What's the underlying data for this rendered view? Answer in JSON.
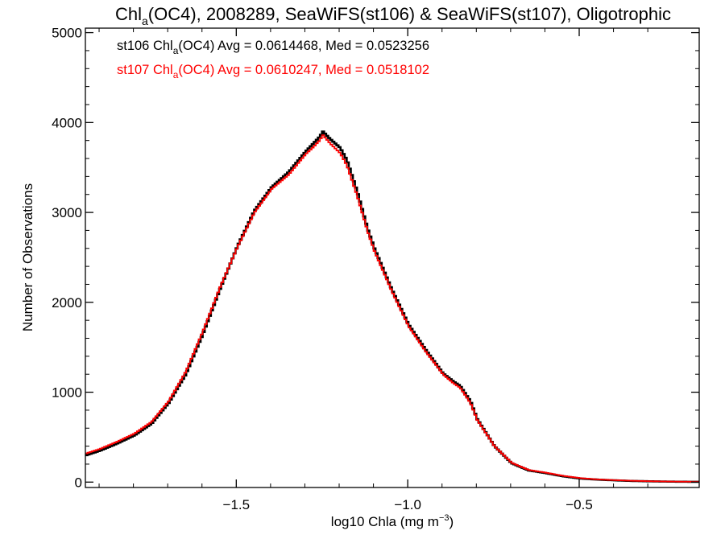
{
  "chart_data": {
    "type": "line",
    "step": true,
    "title": {
      "prefix": "Chl",
      "sub": "a",
      "suffix": "(OC4), 2008289, SeaWiFS(st106) & SeaWiFS(st107), Oligotrophic"
    },
    "xlabel": {
      "prefix": "log10 Chla (mg m",
      "sup": "−3",
      "suffix": ")"
    },
    "ylabel": "Number of Observations",
    "xlim": [
      -1.94,
      -0.15
    ],
    "ylim": [
      -60,
      5050
    ],
    "xticks": [
      {
        "value": -1.5,
        "label": "−1.5"
      },
      {
        "value": -1.0,
        "label": "−1.0"
      },
      {
        "value": -0.5,
        "label": "−0.5"
      }
    ],
    "yticks": [
      {
        "value": 0,
        "label": "0"
      },
      {
        "value": 1000,
        "label": "1000"
      },
      {
        "value": 2000,
        "label": "2000"
      },
      {
        "value": 3000,
        "label": "3000"
      },
      {
        "value": 4000,
        "label": "4000"
      },
      {
        "value": 5000,
        "label": "5000"
      }
    ],
    "grid": false,
    "legend": [
      {
        "series": "st106",
        "prefix": "st106 Chl",
        "sub": "a",
        "suffix": "(OC4) Avg = 0.0614468, Med = 0.0523256",
        "color": "#000000"
      },
      {
        "series": "st107",
        "prefix": "st107 Chl",
        "sub": "a",
        "suffix": "(OC4) Avg = 0.0610247, Med = 0.0518102",
        "color": "#ff0000"
      }
    ],
    "series": [
      {
        "name": "st106",
        "color": "#000000",
        "x": [
          -1.94,
          -1.9,
          -1.85,
          -1.8,
          -1.75,
          -1.7,
          -1.65,
          -1.6,
          -1.55,
          -1.5,
          -1.45,
          -1.4,
          -1.35,
          -1.3,
          -1.28,
          -1.26,
          -1.25,
          -1.23,
          -1.2,
          -1.18,
          -1.15,
          -1.12,
          -1.1,
          -1.05,
          -1.0,
          -0.95,
          -0.9,
          -0.87,
          -0.85,
          -0.82,
          -0.8,
          -0.75,
          -0.7,
          -0.65,
          -0.6,
          -0.55,
          -0.5,
          -0.45,
          -0.4,
          -0.35,
          -0.3,
          -0.25,
          -0.2,
          -0.15
        ],
        "y": [
          300,
          350,
          430,
          520,
          650,
          880,
          1200,
          1650,
          2150,
          2620,
          3020,
          3280,
          3450,
          3680,
          3760,
          3840,
          3900,
          3820,
          3720,
          3580,
          3230,
          2820,
          2600,
          2150,
          1750,
          1470,
          1210,
          1120,
          1070,
          900,
          700,
          400,
          210,
          130,
          100,
          65,
          40,
          28,
          20,
          13,
          9,
          6,
          4,
          3
        ]
      },
      {
        "name": "st107",
        "color": "#ff0000",
        "x": [
          -1.94,
          -1.9,
          -1.85,
          -1.8,
          -1.75,
          -1.7,
          -1.65,
          -1.6,
          -1.55,
          -1.5,
          -1.45,
          -1.4,
          -1.35,
          -1.3,
          -1.28,
          -1.26,
          -1.25,
          -1.23,
          -1.2,
          -1.18,
          -1.15,
          -1.12,
          -1.1,
          -1.05,
          -1.0,
          -0.95,
          -0.9,
          -0.87,
          -0.85,
          -0.82,
          -0.8,
          -0.75,
          -0.7,
          -0.65,
          -0.6,
          -0.55,
          -0.5,
          -0.45,
          -0.4,
          -0.35,
          -0.3,
          -0.25,
          -0.2,
          -0.15
        ],
        "y": [
          320,
          370,
          450,
          540,
          670,
          900,
          1230,
          1680,
          2170,
          2610,
          3000,
          3260,
          3420,
          3650,
          3720,
          3800,
          3860,
          3770,
          3660,
          3520,
          3180,
          2790,
          2570,
          2130,
          1730,
          1450,
          1200,
          1100,
          1050,
          880,
          690,
          400,
          215,
          135,
          105,
          70,
          45,
          30,
          22,
          15,
          10,
          7,
          5,
          4
        ]
      }
    ]
  }
}
